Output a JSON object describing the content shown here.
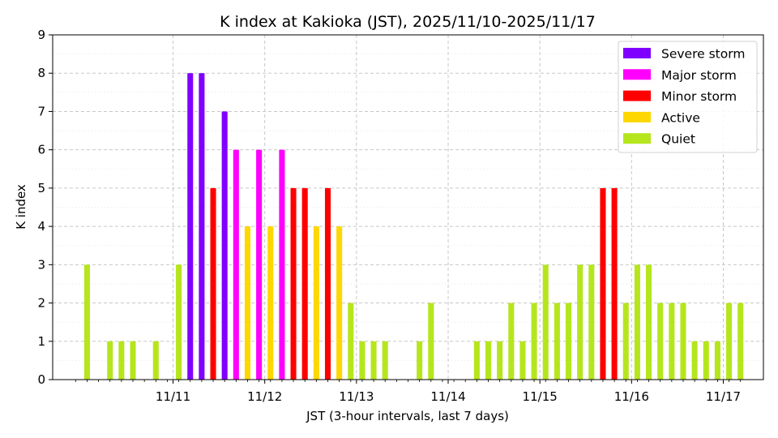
{
  "chart_data": {
    "type": "bar",
    "title": "K index at Kakioka (JST), 2025/11/10-2025/11/17",
    "xlabel": "JST (3-hour intervals, last 7 days)",
    "ylabel": "K index",
    "ylim": [
      0,
      9
    ],
    "yticks": [
      0,
      1,
      2,
      3,
      4,
      5,
      6,
      7,
      8,
      9
    ],
    "xlim_slots": [
      -3,
      59
    ],
    "xtick_labels": [
      "11/11",
      "11/12",
      "11/13",
      "11/14",
      "11/15",
      "11/16",
      "11/17"
    ],
    "slots_per_day": 8,
    "grid": true,
    "legend_position": "top-right",
    "levels": [
      {
        "name": "Severe storm",
        "color": "#7f00ff"
      },
      {
        "name": "Major storm",
        "color": "#ff00ff"
      },
      {
        "name": "Minor storm",
        "color": "#ff0000"
      },
      {
        "name": "Active",
        "color": "#ffd700"
      },
      {
        "name": "Quiet",
        "color": "#b5e61d"
      }
    ],
    "values": [
      3,
      0,
      1,
      1,
      1,
      0,
      1,
      0,
      3,
      8,
      8,
      5,
      7,
      6,
      4,
      6,
      4,
      6,
      5,
      5,
      4,
      5,
      4,
      2,
      1,
      1,
      1,
      0,
      0,
      1,
      2,
      0,
      0,
      0,
      1,
      1,
      1,
      2,
      1,
      2,
      3,
      2,
      2,
      3,
      3,
      5,
      5,
      2,
      3,
      3,
      2,
      2,
      2,
      1,
      1,
      1,
      2,
      2
    ],
    "levels_per_bar": [
      "Quiet",
      "Quiet",
      "Quiet",
      "Quiet",
      "Quiet",
      "Quiet",
      "Quiet",
      "Quiet",
      "Quiet",
      "Severe storm",
      "Severe storm",
      "Minor storm",
      "Severe storm",
      "Major storm",
      "Active",
      "Major storm",
      "Active",
      "Major storm",
      "Minor storm",
      "Minor storm",
      "Active",
      "Minor storm",
      "Active",
      "Quiet",
      "Quiet",
      "Quiet",
      "Quiet",
      "Quiet",
      "Quiet",
      "Quiet",
      "Quiet",
      "Quiet",
      "Quiet",
      "Quiet",
      "Quiet",
      "Quiet",
      "Quiet",
      "Quiet",
      "Quiet",
      "Quiet",
      "Quiet",
      "Quiet",
      "Quiet",
      "Quiet",
      "Quiet",
      "Minor storm",
      "Minor storm",
      "Quiet",
      "Quiet",
      "Quiet",
      "Quiet",
      "Quiet",
      "Quiet",
      "Quiet",
      "Quiet",
      "Quiet",
      "Quiet",
      "Quiet"
    ]
  }
}
